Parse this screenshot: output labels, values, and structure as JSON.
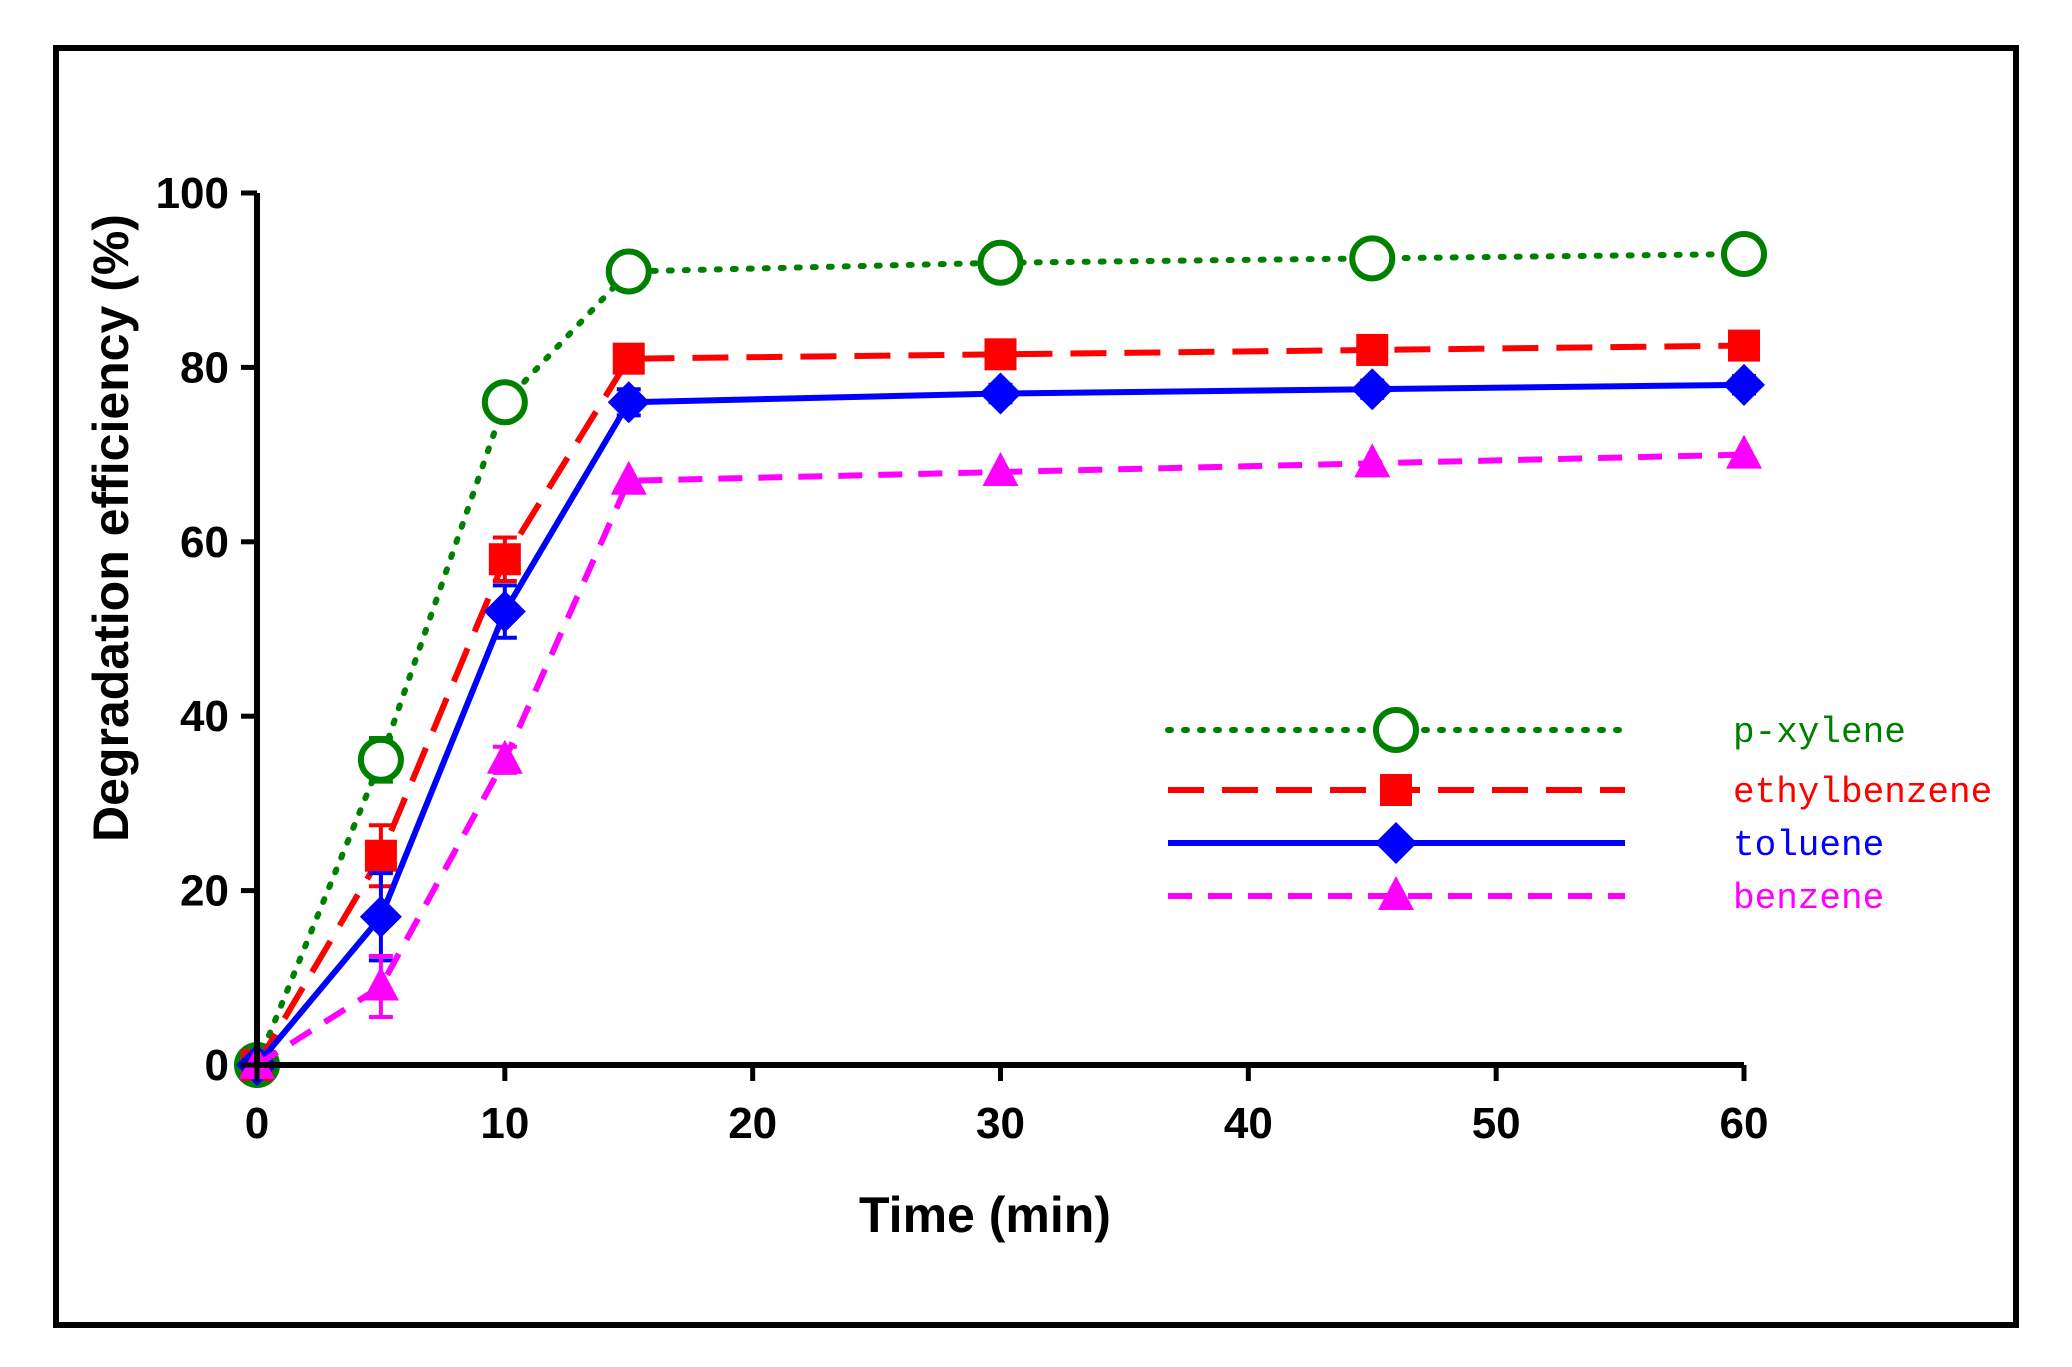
{
  "chart_data": {
    "type": "line",
    "title": "",
    "xlabel": "Time (min)",
    "ylabel": "Degradation efficiency (%)",
    "xlim": [
      0,
      60
    ],
    "ylim": [
      0,
      100
    ],
    "xticks": [
      "0",
      "10",
      "20",
      "30",
      "40",
      "50",
      "60"
    ],
    "yticks": [
      "0",
      "20",
      "40",
      "60",
      "80",
      "100"
    ],
    "grid": false,
    "legend_position": "right",
    "x": [
      0,
      5,
      10,
      15,
      30,
      45,
      60
    ],
    "series": [
      {
        "name": "p-xylene",
        "values": [
          0,
          35,
          76,
          91,
          92,
          92.5,
          93
        ],
        "errors": [
          0,
          2.5,
          0,
          0,
          0,
          0,
          0
        ],
        "color": "#008000",
        "dash": "dotted",
        "marker": "open-circle"
      },
      {
        "name": "ethylbenzene",
        "values": [
          0,
          24,
          58,
          81,
          81.5,
          82,
          82.5
        ],
        "errors": [
          0,
          3.5,
          2.5,
          0,
          0,
          0,
          0
        ],
        "color": "#ff0000",
        "dash": "dashed",
        "marker": "filled-square"
      },
      {
        "name": "toluene",
        "values": [
          0,
          17,
          52,
          76,
          77,
          77.5,
          78
        ],
        "errors": [
          0,
          5,
          3,
          1.5,
          1,
          1,
          1
        ],
        "color": "#0000ff",
        "dash": "solid",
        "marker": "filled-diamond"
      },
      {
        "name": "benzene",
        "values": [
          0,
          9,
          35,
          67,
          68,
          69,
          70
        ],
        "errors": [
          0,
          3.5,
          1.5,
          0,
          0,
          0,
          0
        ],
        "color": "#ff00ff",
        "dash": "dashed-short",
        "marker": "filled-triangle"
      }
    ]
  }
}
